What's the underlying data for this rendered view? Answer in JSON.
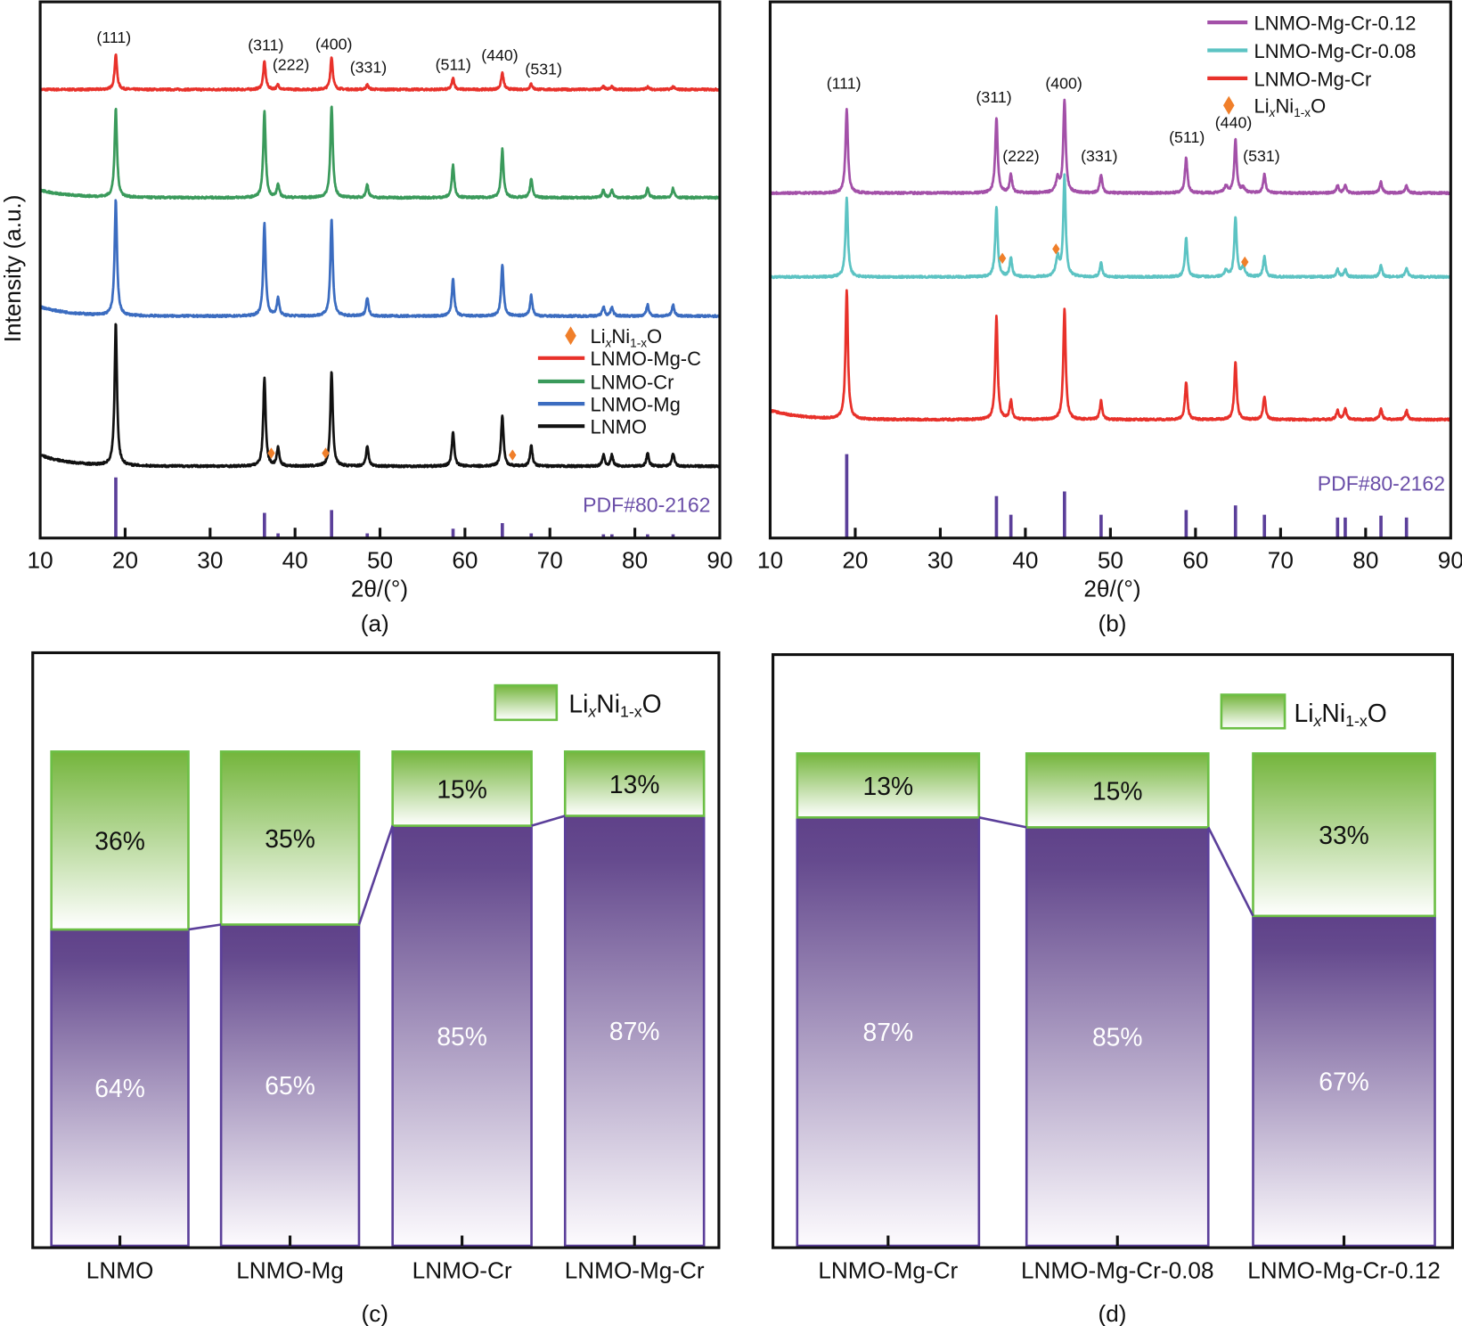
{
  "panels": {
    "a": {
      "caption": "(a)",
      "ylabel": "Intensity (a.u.)",
      "xlabel": "2θ/(°)",
      "ref_label": "PDF#80-2162"
    },
    "b": {
      "caption": "(b)",
      "xlabel": "2θ/(°)",
      "ref_label": "PDF#80-2162"
    },
    "c": {
      "caption": "(c)"
    },
    "d": {
      "caption": "(d)"
    }
  },
  "phase_label": {
    "base1": "Li",
    "sub1": "x",
    "base2": "Ni",
    "sub2": "1-x",
    "base3": "O"
  },
  "colors": {
    "marker": "#f07f2a",
    "reference": "#5b3f9a",
    "green_top": "#74b53c",
    "purple_top": "#5f4189",
    "bar_stroke_green": "#6cbf45",
    "bar_stroke_purple": "#5b3f9a"
  },
  "chart_data": [
    {
      "id": "a",
      "type": "line",
      "xlabel": "2θ/(°)",
      "ylabel": "Intensity (a.u.)",
      "xlim": [
        10,
        90
      ],
      "xticks": [
        "10",
        "20",
        "30",
        "40",
        "50",
        "60",
        "70",
        "80",
        "90"
      ],
      "grid": false,
      "legend_position": "right",
      "peak_positions": [
        18.9,
        36.4,
        38.0,
        44.3,
        48.5,
        58.6,
        64.4,
        67.8,
        76.3,
        77.3,
        81.5,
        84.5
      ],
      "hkl": [
        {
          "label": "(111)",
          "x": 18.9
        },
        {
          "label": "(311)",
          "x": 36.4
        },
        {
          "label": "(222)",
          "x": 38.0
        },
        {
          "label": "(400)",
          "x": 44.3
        },
        {
          "label": "(331)",
          "x": 48.5
        },
        {
          "label": "(511)",
          "x": 58.6
        },
        {
          "label": "(440)",
          "x": 64.4
        },
        {
          "label": "(531)",
          "x": 67.8
        }
      ],
      "series": [
        {
          "name": "LNMO-Mg-C",
          "color": "#e8312a",
          "offset": 481,
          "background": 0,
          "heights": [
            38,
            30,
            5,
            35,
            5,
            12,
            18,
            6,
            3,
            3,
            3,
            3
          ]
        },
        {
          "name": "LNMO-Cr",
          "color": "#3a9a5b",
          "offset": 365,
          "background": 8,
          "heights": [
            95,
            92,
            14,
            99,
            14,
            35,
            52,
            20,
            8,
            8,
            10,
            10
          ]
        },
        {
          "name": "LNMO-Mg",
          "color": "#3b6cc0",
          "offset": 238,
          "background": 10,
          "heights": [
            124,
            99,
            20,
            104,
            20,
            40,
            55,
            22,
            10,
            10,
            12,
            12
          ]
        },
        {
          "name": "LNMO",
          "color": "#111111",
          "offset": 77,
          "background": 12,
          "heights": [
            153,
            95,
            20,
            102,
            22,
            37,
            55,
            22,
            12,
            12,
            14,
            14
          ]
        }
      ],
      "impurity_markers": [
        {
          "x": 37.2,
          "y": 91
        },
        {
          "x": 43.6,
          "y": 91
        },
        {
          "x": 65.6,
          "y": 89
        }
      ],
      "reference_heights": [
        65,
        27,
        5,
        30,
        5,
        10,
        16,
        5,
        4,
        4,
        4,
        4
      ]
    },
    {
      "id": "b",
      "type": "line",
      "xlabel": "2θ/(°)",
      "xlim": [
        10,
        90
      ],
      "xticks": [
        "10",
        "20",
        "30",
        "40",
        "50",
        "60",
        "70",
        "80",
        "90"
      ],
      "grid": false,
      "legend_position": "top-right",
      "peak_positions": [
        19.0,
        36.6,
        38.3,
        44.6,
        48.9,
        58.9,
        64.7,
        68.1,
        76.7,
        77.6,
        81.8,
        84.8
      ],
      "hkl": [
        {
          "label": "(111)",
          "x": 19.0
        },
        {
          "label": "(311)",
          "x": 36.6
        },
        {
          "label": "(222)",
          "x": 38.3
        },
        {
          "label": "(400)",
          "x": 44.6
        },
        {
          "label": "(331)",
          "x": 48.9
        },
        {
          "label": "(511)",
          "x": 58.9
        },
        {
          "label": "(440)",
          "x": 64.7
        },
        {
          "label": "(531)",
          "x": 68.1
        }
      ],
      "series": [
        {
          "name": "LNMO-Mg-Cr-0.12",
          "color": "#a350a8",
          "offset": 370,
          "background": 0,
          "heights": [
            90,
            81,
            20,
            99,
            20,
            38,
            57,
            20,
            8,
            8,
            12,
            8
          ],
          "extra": [
            [
              43.8,
              15
            ],
            [
              63.6,
              7
            ],
            [
              65.6,
              5
            ]
          ]
        },
        {
          "name": "LNMO-Mg-Cr-0.08",
          "color": "#5cc3c3",
          "offset": 280,
          "background": 0,
          "heights": [
            84,
            75,
            20,
            107,
            15,
            42,
            64,
            22,
            8,
            8,
            12,
            10
          ],
          "extra": [
            [
              43.8,
              20
            ],
            [
              63.6,
              7
            ],
            [
              65.6,
              10
            ]
          ]
        },
        {
          "name": "LNMO-Mg-Cr",
          "color": "#e8312a",
          "offset": 127,
          "background": 10,
          "heights": [
            138,
            110,
            20,
            119,
            20,
            40,
            62,
            25,
            10,
            12,
            12,
            10
          ]
        }
      ],
      "impurity_markers": [
        {
          "x": 37.3,
          "y": 300
        },
        {
          "x": 43.6,
          "y": 310
        },
        {
          "x": 65.8,
          "y": 296
        }
      ],
      "reference_heights": [
        90,
        45,
        25,
        50,
        25,
        30,
        35,
        25,
        22,
        22,
        24,
        22
      ]
    },
    {
      "id": "c",
      "type": "bar",
      "stacked": true,
      "categories": [
        "LNMO",
        "LNMO-Mg",
        "LNMO-Cr",
        "LNMO-Mg-Cr"
      ],
      "ylim": [
        0,
        100
      ],
      "series": [
        {
          "name": "LixNi1-xO",
          "position": "top",
          "values": [
            36,
            35,
            15,
            13
          ]
        },
        {
          "position": "bottom",
          "values": [
            64,
            65,
            85,
            87
          ]
        }
      ],
      "legend_position": "top-right"
    },
    {
      "id": "d",
      "type": "bar",
      "stacked": true,
      "categories": [
        "LNMO-Mg-Cr",
        "LNMO-Mg-Cr-0.08",
        "LNMO-Mg-Cr-0.12"
      ],
      "ylim": [
        0,
        100
      ],
      "series": [
        {
          "name": "LixNi1-xO",
          "position": "top",
          "values": [
            13,
            15,
            33
          ]
        },
        {
          "position": "bottom",
          "values": [
            87,
            85,
            67
          ]
        }
      ],
      "legend_position": "top-right"
    }
  ]
}
